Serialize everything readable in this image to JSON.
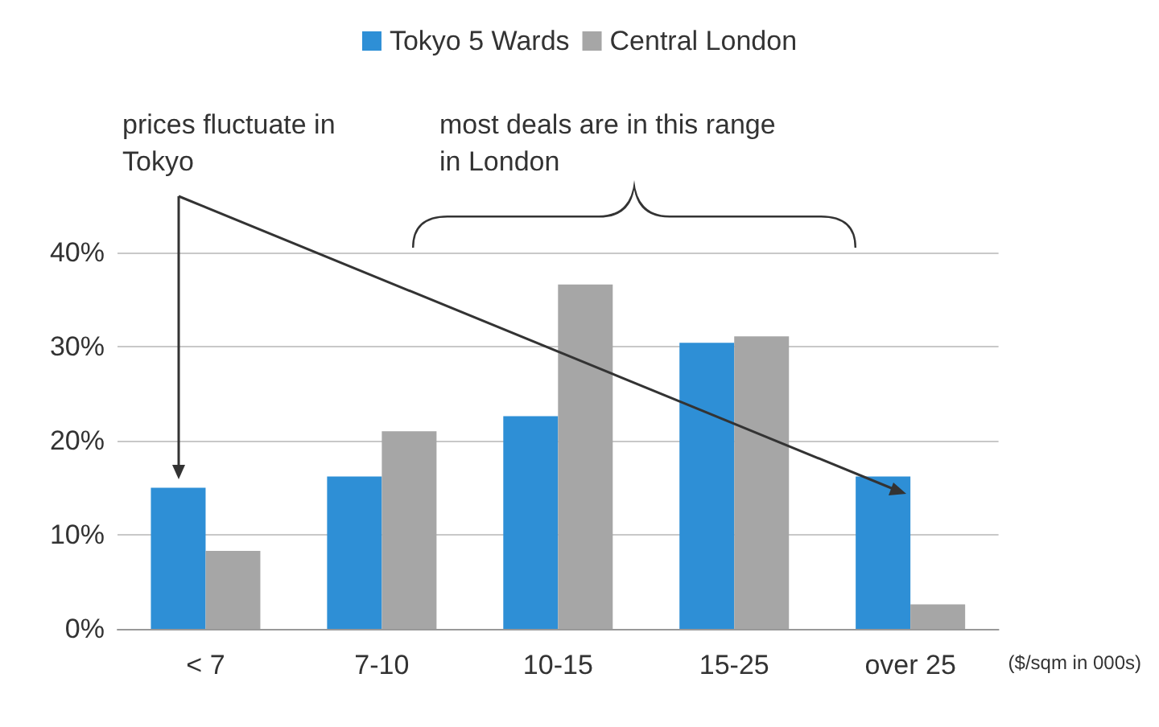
{
  "chart_data": {
    "type": "bar",
    "categories": [
      "< 7",
      "7-10",
      "10-15",
      "15-25",
      "over 25"
    ],
    "series": [
      {
        "name": "Tokyo 5 Wards",
        "color": "#2e8fd6",
        "values": [
          15,
          16.2,
          22.6,
          30.4,
          16.2
        ]
      },
      {
        "name": "Central London",
        "color": "#a6a6a6",
        "values": [
          8.3,
          21,
          36.6,
          31.1,
          2.6
        ]
      }
    ],
    "xlabel": "($/sqm in 000s)",
    "ylim": [
      0,
      40
    ],
    "yticks": [
      {
        "value": 0,
        "label": "0%"
      },
      {
        "value": 10,
        "label": "10%"
      },
      {
        "value": 20,
        "label": "20%"
      },
      {
        "value": 30,
        "label": "30%"
      },
      {
        "value": 40,
        "label": "40%"
      }
    ],
    "grid": "y",
    "legend": "top",
    "annotations": [
      "prices fluctuate in Tokyo",
      "most deals are in this range in London"
    ]
  }
}
